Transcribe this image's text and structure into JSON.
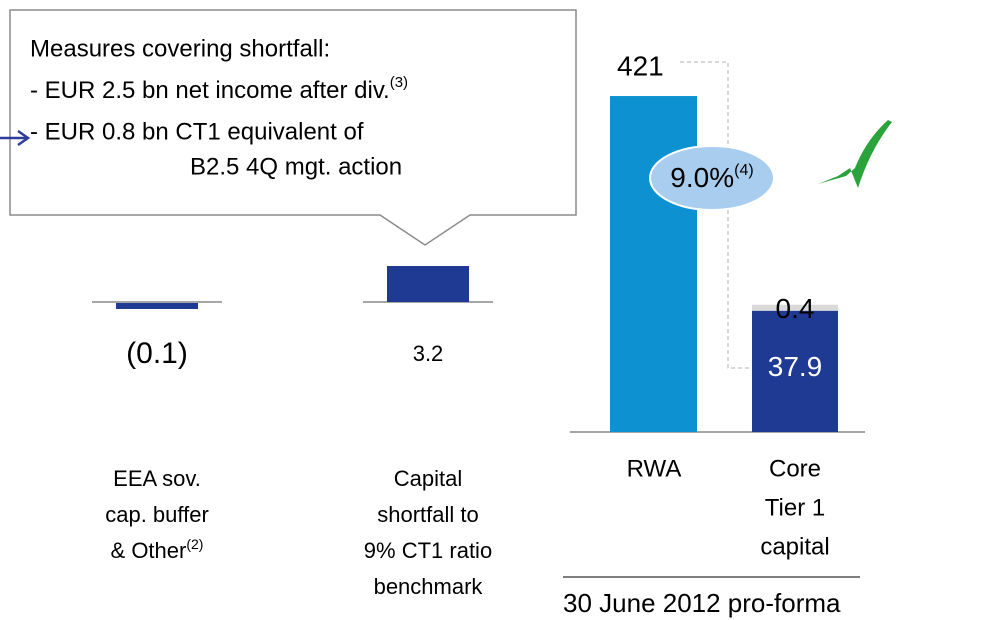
{
  "callout": {
    "heading": "Measures covering shortfall:",
    "items": [
      {
        "text": "- EUR 2.5 bn net income after div.",
        "note": "(3)"
      },
      {
        "text": "- EUR 0.8 bn CT1 equivalent of",
        "continuation": "B2.5 4Q mgt. action"
      }
    ]
  },
  "chart_data": {
    "type": "bar",
    "bars": [
      {
        "label_lines": [
          "EEA sov.",
          "cap. buffer",
          "& Other"
        ],
        "note": "(2)",
        "value": -0.1,
        "value_label": "(0.1)",
        "color": "#1f3a93"
      },
      {
        "label_lines": [
          "Capital",
          "shortfall to",
          "9% CT1 ratio",
          "benchmark"
        ],
        "value": 3.2,
        "color": "#1f3a93"
      }
    ],
    "pro_forma": {
      "title": "30 June 2012 pro-forma",
      "rwa": {
        "label_lines": [
          "RWA"
        ],
        "value": 421,
        "color": "#0e91d1"
      },
      "capital": {
        "label_lines": [
          "Core",
          "Tier 1",
          "capital"
        ],
        "segments": [
          {
            "value": 37.9,
            "color": "#1f3a93"
          },
          {
            "value": 0.4,
            "color": "#d9d9d9"
          }
        ]
      },
      "ratio": {
        "label": "9.0%",
        "note": "(4)"
      }
    }
  }
}
